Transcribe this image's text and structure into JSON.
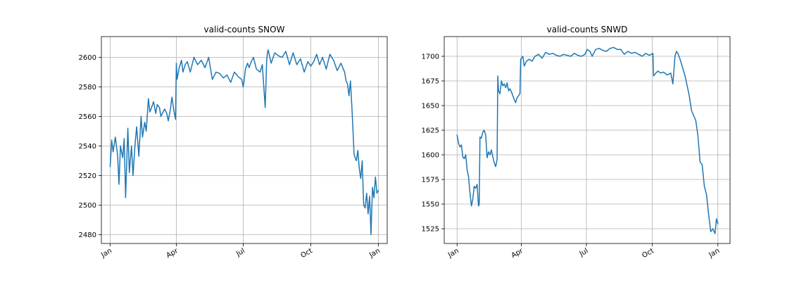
{
  "chart_data": [
    {
      "type": "line",
      "title": "valid-counts SNOW",
      "xlabel": "",
      "ylabel": "",
      "x_ticks": [
        {
          "label": "Jan",
          "day": 1
        },
        {
          "label": "Apr",
          "day": 91
        },
        {
          "label": "Jul",
          "day": 182
        },
        {
          "label": "Oct",
          "day": 274
        },
        {
          "label": "Jan",
          "day": 366
        }
      ],
      "y_ticks": [
        2480,
        2500,
        2520,
        2540,
        2560,
        2580,
        2600
      ],
      "xlim": [
        -11,
        378
      ],
      "ylim": [
        2474,
        2614
      ],
      "grid": true,
      "color": "#1f77b4",
      "series": [
        {
          "x": [
            1,
            3,
            5,
            8,
            11,
            13,
            15,
            18,
            20,
            22,
            25,
            27,
            30,
            32,
            35,
            37,
            40,
            43,
            45,
            48,
            50,
            53,
            55,
            58,
            60,
            63,
            65,
            68,
            70,
            73,
            75,
            78,
            80,
            83,
            85,
            88,
            90,
            91,
            92,
            95,
            98,
            100,
            103,
            106,
            110,
            115,
            120,
            125,
            130,
            135,
            140,
            145,
            150,
            155,
            160,
            165,
            170,
            175,
            180,
            182,
            183,
            185,
            188,
            190,
            193,
            196,
            200,
            205,
            208,
            212,
            214,
            215,
            216,
            220,
            225,
            230,
            235,
            240,
            245,
            250,
            255,
            260,
            265,
            270,
            274,
            278,
            282,
            286,
            290,
            295,
            300,
            305,
            310,
            315,
            320,
            322,
            324,
            326,
            328,
            330,
            333,
            336,
            338,
            340,
            342,
            344,
            346,
            348,
            350,
            352,
            354,
            356,
            358,
            360,
            362,
            364,
            366
          ],
          "y": [
            2526,
            2544,
            2536,
            2546,
            2534,
            2514,
            2540,
            2532,
            2545,
            2505,
            2552,
            2522,
            2540,
            2520,
            2542,
            2553,
            2533,
            2560,
            2546,
            2556,
            2550,
            2572,
            2563,
            2567,
            2570,
            2562,
            2568,
            2566,
            2560,
            2563,
            2565,
            2562,
            2557,
            2565,
            2573,
            2563,
            2558,
            2596,
            2585,
            2593,
            2598,
            2590,
            2595,
            2597,
            2590,
            2600,
            2595,
            2598,
            2593,
            2600,
            2585,
            2590,
            2589,
            2586,
            2588,
            2583,
            2590,
            2587,
            2585,
            2580,
            2583,
            2592,
            2596,
            2593,
            2597,
            2600,
            2592,
            2590,
            2595,
            2566,
            2598,
            2603,
            2605,
            2596,
            2603,
            2601,
            2600,
            2604,
            2595,
            2603,
            2595,
            2599,
            2590,
            2597,
            2594,
            2597,
            2602,
            2595,
            2600,
            2592,
            2602,
            2598,
            2591,
            2596,
            2590,
            2584,
            2582,
            2574,
            2584,
            2566,
            2534,
            2530,
            2537,
            2525,
            2518,
            2530,
            2500,
            2498,
            2508,
            2494,
            2506,
            2480,
            2512,
            2505,
            2519,
            2508,
            2510
          ]
        }
      ]
    },
    {
      "type": "line",
      "title": "valid-counts SNWD",
      "xlabel": "",
      "ylabel": "",
      "x_ticks": [
        {
          "label": "Jan",
          "day": 1
        },
        {
          "label": "Apr",
          "day": 91
        },
        {
          "label": "Jul",
          "day": 182
        },
        {
          "label": "Oct",
          "day": 274
        },
        {
          "label": "Jan",
          "day": 366
        }
      ],
      "y_ticks": [
        1525,
        1550,
        1575,
        1600,
        1625,
        1650,
        1675,
        1700
      ],
      "xlim": [
        -17,
        383
      ],
      "ylim": [
        1510,
        1720
      ],
      "grid": true,
      "color": "#1f77b4",
      "series": [
        {
          "x": [
            1,
            3,
            5,
            7,
            9,
            11,
            13,
            15,
            17,
            19,
            21,
            23,
            25,
            27,
            29,
            31,
            32,
            33,
            35,
            37,
            39,
            41,
            43,
            45,
            47,
            49,
            51,
            53,
            55,
            57,
            58,
            59,
            61,
            63,
            65,
            67,
            69,
            71,
            73,
            75,
            77,
            79,
            81,
            83,
            85,
            87,
            89,
            90,
            91,
            93,
            95,
            98,
            102,
            106,
            110,
            115,
            120,
            125,
            130,
            135,
            140,
            145,
            150,
            155,
            160,
            165,
            170,
            175,
            180,
            183,
            185,
            187,
            190,
            195,
            200,
            205,
            210,
            215,
            220,
            225,
            230,
            235,
            240,
            245,
            250,
            255,
            260,
            265,
            270,
            275,
            276,
            278,
            282,
            286,
            290,
            295,
            300,
            303,
            306,
            308,
            310,
            313,
            316,
            320,
            323,
            326,
            329,
            332,
            335,
            338,
            341,
            344,
            347,
            350,
            353,
            356,
            359,
            362,
            364,
            366
          ],
          "y": [
            1620,
            1612,
            1608,
            1610,
            1598,
            1596,
            1600,
            1585,
            1578,
            1562,
            1548,
            1555,
            1568,
            1566,
            1570,
            1548,
            1550,
            1618,
            1617,
            1623,
            1625,
            1620,
            1597,
            1603,
            1600,
            1605,
            1598,
            1592,
            1588,
            1595,
            1680,
            1665,
            1662,
            1675,
            1670,
            1672,
            1668,
            1673,
            1665,
            1667,
            1664,
            1660,
            1656,
            1653,
            1658,
            1660,
            1662,
            1697,
            1698,
            1700,
            1690,
            1695,
            1697,
            1695,
            1700,
            1702,
            1698,
            1704,
            1702,
            1703,
            1701,
            1700,
            1702,
            1701,
            1700,
            1703,
            1701,
            1700,
            1702,
            1707,
            1706,
            1705,
            1700,
            1707,
            1708,
            1706,
            1705,
            1708,
            1709,
            1707,
            1707,
            1702,
            1705,
            1703,
            1704,
            1702,
            1700,
            1703,
            1701,
            1703,
            1680,
            1682,
            1685,
            1683,
            1684,
            1681,
            1683,
            1672,
            1700,
            1705,
            1703,
            1697,
            1690,
            1680,
            1670,
            1660,
            1645,
            1640,
            1635,
            1620,
            1593,
            1590,
            1568,
            1560,
            1540,
            1522,
            1525,
            1520,
            1535,
            1530
          ]
        }
      ]
    }
  ]
}
